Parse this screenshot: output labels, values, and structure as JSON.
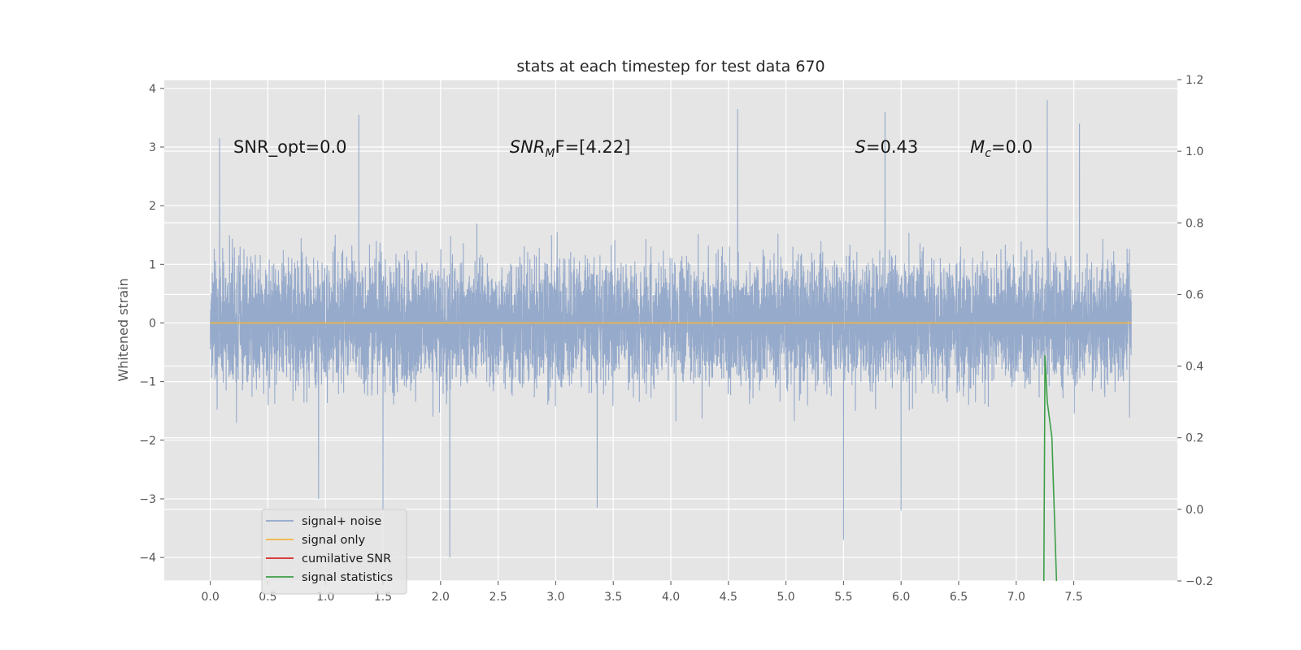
{
  "chart_data": {
    "type": "line",
    "title": "stats at each timestep for test data 670",
    "xlabel": "",
    "ylabel": "Whitened strain",
    "xlim": [
      -0.4,
      8.4
    ],
    "ylim": [
      -4.4,
      4.15
    ],
    "y2lim": [
      -0.2,
      1.2
    ],
    "x_ticks": [
      "0.0",
      "0.5",
      "1.0",
      "1.5",
      "2.0",
      "2.5",
      "3.0",
      "3.5",
      "4.0",
      "4.5",
      "5.0",
      "5.5",
      "6.0",
      "6.5",
      "7.0",
      "7.5"
    ],
    "y_ticks": [
      "4",
      "3",
      "2",
      "1",
      "0",
      "−1",
      "−2",
      "−3",
      "−4"
    ],
    "y2_ticks": [
      "1.2",
      "1.0",
      "0.8",
      "0.6",
      "0.4",
      "0.2",
      "0.0",
      "−0.2"
    ],
    "grid": true,
    "background": "#e5e5e5",
    "legend_position": "lower-left",
    "annotations": [
      {
        "text": "SNR_opt=0.0",
        "x": 0.2,
        "y": 3.0
      },
      {
        "text": "SNR",
        "sub": "M",
        "after": "F=[4.22]",
        "x": 2.6,
        "y": 3.0,
        "italic": true
      },
      {
        "text": "S",
        "after": "=0.43",
        "x": 5.6,
        "y": 3.0,
        "italic": true
      },
      {
        "text": "M",
        "sub": "c",
        "after": "=0.0",
        "x": 6.6,
        "y": 3.0,
        "italic": true
      }
    ],
    "series": [
      {
        "name": "signal+ noise",
        "color": "#91a6c9",
        "axis": "left",
        "kind": "noise",
        "x_range": [
          0.0,
          8.0
        ],
        "band": [
          -1.9,
          2.0
        ],
        "sample_rate": 1024,
        "peaks": [
          {
            "x": 0.08,
            "y": 3.15
          },
          {
            "x": 1.29,
            "y": 3.55
          },
          {
            "x": 4.58,
            "y": 3.65
          },
          {
            "x": 5.86,
            "y": 3.6
          },
          {
            "x": 7.27,
            "y": 3.8
          },
          {
            "x": 7.55,
            "y": 3.4
          }
        ],
        "troughs": [
          {
            "x": 2.08,
            "y": -4.0
          },
          {
            "x": 5.5,
            "y": -3.7
          },
          {
            "x": 1.5,
            "y": -3.2
          },
          {
            "x": 6.0,
            "y": -3.2
          },
          {
            "x": 0.94,
            "y": -3.0
          },
          {
            "x": 3.36,
            "y": -3.15
          }
        ]
      },
      {
        "name": "signal only",
        "color": "#f0b541",
        "axis": "left",
        "x": [
          0.0,
          8.0
        ],
        "y": [
          0.0,
          0.0
        ]
      },
      {
        "name": "cumilative SNR",
        "color": "#d62728",
        "axis": "right",
        "x": [],
        "y": []
      },
      {
        "name": "signal statistics",
        "color": "#3c9e47",
        "axis": "right",
        "x": [
          7.24,
          7.25,
          7.27,
          7.31,
          7.35
        ],
        "y": [
          -0.2,
          0.43,
          0.3,
          0.2,
          -0.2
        ]
      }
    ]
  }
}
